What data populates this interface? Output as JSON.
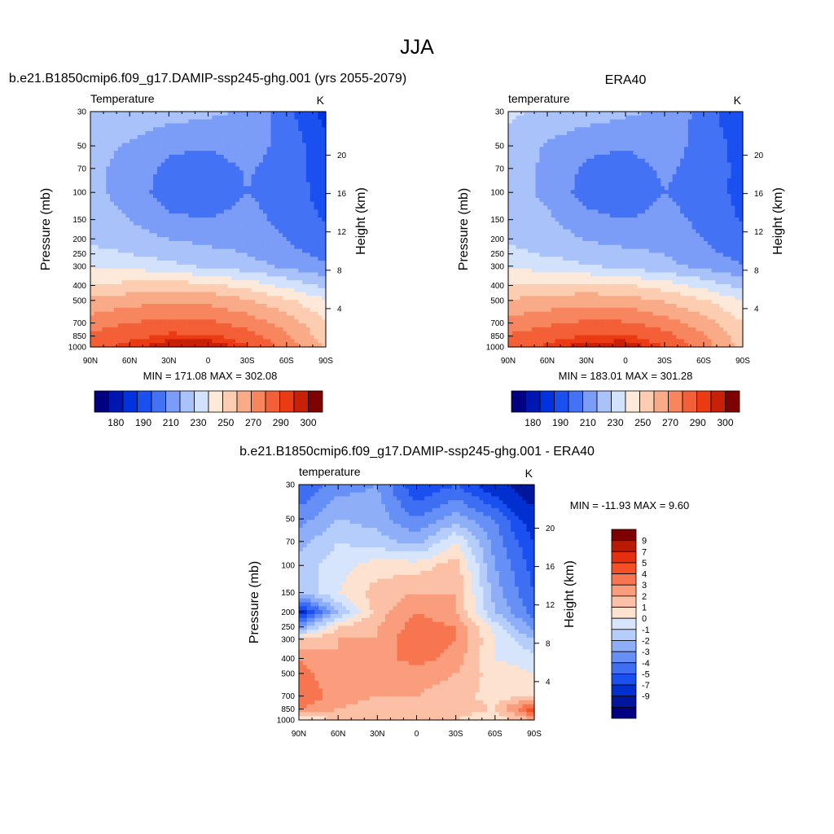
{
  "page": {
    "title": "JJA"
  },
  "panels": [
    {
      "id": "model",
      "header": "b.e21.B1850cmip6.f09_g17.DAMIP-ssp245-ghg.001 (yrs 2055-2079)",
      "left_label": "Temperature",
      "unit": "K",
      "ylabel": "Pressure (mb)",
      "ylabel_right": "Height (km)",
      "stats": "MIN = 171.08  MAX = 302.08"
    },
    {
      "id": "obs",
      "header": "ERA40",
      "left_label": "temperature",
      "unit": "K",
      "ylabel": "Pressure (mb)",
      "ylabel_right": "Height (km)",
      "stats": "MIN = 183.01  MAX = 301.28"
    },
    {
      "id": "diff",
      "header": "b.e21.B1850cmip6.f09_g17.DAMIP-ssp245-ghg.001 - ERA40",
      "left_label": "temperature",
      "unit": "K",
      "ylabel": "Pressure (mb)",
      "ylabel_right": "Height (km)",
      "stats": "MIN = -11.93  MAX =   9.60"
    }
  ],
  "axes": {
    "pressure_ticks": [
      "30",
      "50",
      "70",
      "100",
      "150",
      "200",
      "250",
      "300",
      "400",
      "500",
      "700",
      "850",
      "1000"
    ],
    "pressure_values": [
      30,
      50,
      70,
      100,
      150,
      200,
      250,
      300,
      400,
      500,
      700,
      850,
      1000
    ],
    "height_ticks": [
      "20",
      "16",
      "12",
      "8",
      "4"
    ],
    "height_values": [
      20,
      16,
      12,
      8,
      4
    ],
    "lat_ticks": [
      "90N",
      "60N",
      "30N",
      "0",
      "30S",
      "60S",
      "90S"
    ],
    "lat_values": [
      90,
      60,
      30,
      0,
      -30,
      -60,
      -90
    ]
  },
  "colorbars": {
    "abs": {
      "colors": [
        "#000080",
        "#0016b0",
        "#0033dd",
        "#1a50f0",
        "#4472f5",
        "#7b9cf7",
        "#aac2fa",
        "#d2e2fc",
        "#fde9da",
        "#fccdb0",
        "#f9ab88",
        "#f7865f",
        "#f35f36",
        "#ea3b15",
        "#c92008",
        "#7f0000"
      ],
      "labels": [
        "180",
        "190",
        "210",
        "230",
        "250",
        "270",
        "290",
        "300"
      ]
    },
    "diff": {
      "colors": [
        "#7f0000",
        "#b81a04",
        "#e4300e",
        "#f55025",
        "#f77650",
        "#f99d7c",
        "#fbc0a5",
        "#fde2cf",
        "#d6e5fc",
        "#b5cdfa",
        "#8eaef8",
        "#6690f5",
        "#3e6ef2",
        "#1a4ff0",
        "#0230d0",
        "#00169c",
        "#000080"
      ],
      "labels": [
        "9",
        "7",
        "5",
        "4",
        "3",
        "2",
        "1",
        "0",
        "-1",
        "-2",
        "-3",
        "-4",
        "-5",
        "-7",
        "-9"
      ]
    }
  },
  "chart_data": [
    {
      "type": "heatmap",
      "title": "b.e21.B1850cmip6.f09_g17.DAMIP-ssp245-ghg.001 (yrs 2055-2079)",
      "subtitle": "Temperature",
      "units": "K",
      "xlabel": "",
      "ylabel": "Pressure (mb)",
      "ylabel_right": "Height (km)",
      "xlim": [
        90,
        -90
      ],
      "ylim": [
        1000,
        30
      ],
      "yscale": "log",
      "min": 171.08,
      "max": 302.08,
      "levels": [
        180,
        185,
        190,
        200,
        210,
        220,
        230,
        240,
        250,
        260,
        270,
        280,
        290,
        295,
        300
      ],
      "x": [
        90,
        60,
        30,
        0,
        -30,
        -60,
        -90
      ],
      "y": [
        30,
        50,
        70,
        100,
        150,
        200,
        250,
        300,
        400,
        500,
        700,
        850,
        1000
      ],
      "z": [
        [
          226,
          227,
          225,
          222,
          219,
          204,
          185
        ],
        [
          223,
          219,
          212,
          211,
          215,
          206,
          194
        ],
        [
          222,
          217,
          207,
          205,
          211,
          206,
          195
        ],
        [
          223,
          216,
          205,
          203,
          210,
          205,
          196
        ],
        [
          225,
          220,
          212,
          210,
          214,
          206,
          199
        ],
        [
          228,
          225,
          220,
          218,
          218,
          210,
          203
        ],
        [
          233,
          230,
          226,
          222,
          220,
          213,
          207
        ],
        [
          240,
          238,
          233,
          228,
          224,
          218,
          212
        ],
        [
          250,
          253,
          255,
          253,
          246,
          237,
          227
        ],
        [
          262,
          266,
          268,
          267,
          261,
          252,
          241
        ],
        [
          275,
          280,
          283,
          282,
          276,
          266,
          251
        ],
        [
          282,
          287,
          292,
          292,
          285,
          272,
          255
        ],
        [
          287,
          293,
          300,
          301,
          291,
          276,
          258
        ]
      ]
    },
    {
      "type": "heatmap",
      "title": "ERA40",
      "subtitle": "temperature",
      "units": "K",
      "xlabel": "",
      "ylabel": "Pressure (mb)",
      "ylabel_right": "Height (km)",
      "xlim": [
        90,
        -90
      ],
      "ylim": [
        1000,
        30
      ],
      "yscale": "log",
      "min": 183.01,
      "max": 301.28,
      "levels": [
        180,
        185,
        190,
        200,
        210,
        220,
        230,
        240,
        250,
        260,
        270,
        280,
        290,
        295,
        300
      ],
      "x": [
        90,
        60,
        30,
        0,
        -30,
        -60,
        -90
      ],
      "y": [
        30,
        50,
        70,
        100,
        150,
        200,
        250,
        300,
        400,
        500,
        700,
        850,
        1000
      ],
      "z": [
        [
          232,
          228,
          225,
          222,
          218,
          206,
          190
        ],
        [
          226,
          219,
          213,
          211,
          215,
          206,
          196
        ],
        [
          225,
          218,
          208,
          205,
          212,
          206,
          197
        ],
        [
          226,
          217,
          206,
          202,
          210,
          205,
          197
        ],
        [
          228,
          222,
          213,
          210,
          214,
          207,
          199
        ],
        [
          229,
          226,
          219,
          217,
          217,
          210,
          203
        ],
        [
          232,
          229,
          225,
          222,
          220,
          213,
          206
        ],
        [
          238,
          236,
          231,
          227,
          223,
          217,
          211
        ],
        [
          250,
          252,
          253,
          251,
          245,
          236,
          226
        ],
        [
          261,
          264,
          266,
          265,
          259,
          251,
          240
        ],
        [
          274,
          278,
          282,
          281,
          275,
          265,
          250
        ],
        [
          281,
          286,
          291,
          291,
          284,
          271,
          254
        ],
        [
          285,
          292,
          299,
          300,
          290,
          275,
          257
        ]
      ]
    },
    {
      "type": "heatmap",
      "title": "b.e21.B1850cmip6.f09_g17.DAMIP-ssp245-ghg.001 - ERA40",
      "subtitle": "temperature",
      "units": "K",
      "xlabel": "",
      "ylabel": "Pressure (mb)",
      "ylabel_right": "Height (km)",
      "xlim": [
        90,
        -90
      ],
      "ylim": [
        1000,
        30
      ],
      "yscale": "log",
      "min": -11.93,
      "max": 9.6,
      "levels": [
        -9,
        -7,
        -5,
        -4,
        -3,
        -2,
        -1,
        0,
        1,
        2,
        3,
        4,
        5,
        7,
        9
      ],
      "x": [
        90,
        60,
        30,
        0,
        -30,
        -60,
        -90
      ],
      "y": [
        30,
        50,
        70,
        100,
        150,
        200,
        250,
        300,
        400,
        500,
        700,
        850,
        1000
      ],
      "z": [
        [
          -4,
          -2.5,
          -2,
          -5,
          -4,
          -6,
          -9
        ],
        [
          -2.5,
          -1,
          -1.5,
          -3,
          -1.5,
          -3,
          -6
        ],
        [
          -1.5,
          0,
          -0.5,
          -1.5,
          1,
          -2.5,
          -5
        ],
        [
          -0.5,
          0.5,
          1.5,
          1.5,
          2.5,
          -2,
          -4.5
        ],
        [
          -1,
          1,
          2.5,
          3,
          3,
          -1.5,
          -4
        ],
        [
          -6,
          -1,
          2.5,
          4,
          3,
          -1,
          -3.5
        ],
        [
          -2,
          2,
          3,
          4.5,
          4,
          0.5,
          -2.5
        ],
        [
          2,
          3,
          3,
          5,
          4,
          1,
          -1
        ],
        [
          4,
          3,
          3.5,
          4.5,
          3.5,
          1,
          0.5
        ],
        [
          4.5,
          3,
          3,
          3.5,
          3,
          1.5,
          1
        ],
        [
          5,
          3.5,
          3,
          3,
          2.5,
          1.5,
          2
        ],
        [
          4,
          3,
          2.5,
          2.5,
          2.5,
          2,
          6
        ],
        [
          1,
          2,
          2,
          2,
          2,
          1,
          3
        ]
      ]
    }
  ]
}
